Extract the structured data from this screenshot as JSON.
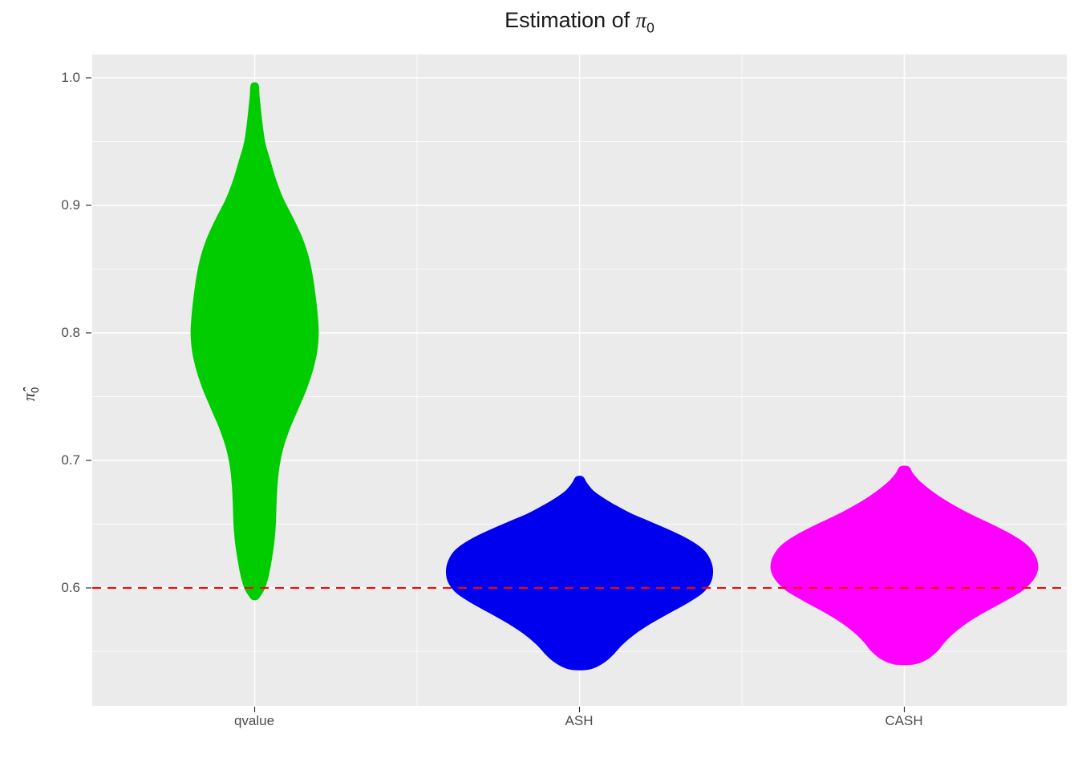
{
  "chart_data": {
    "type": "violin",
    "title": "Estimation of π₀",
    "title_parts": {
      "pre": "Estimation of ",
      "symbol": "π",
      "sub": "0"
    },
    "ylabel": "π̂₀",
    "ylabel_parts": {
      "symbol": "π̂",
      "sub": "0"
    },
    "xlabel": "",
    "categories": [
      "qvalue",
      "ASH",
      "CASH"
    ],
    "y_ticks": {
      "labels": [
        "1.0",
        "0.9",
        "0.8",
        "0.7",
        "0.6"
      ],
      "values": [
        1.0,
        0.9,
        0.8,
        0.7,
        0.6
      ]
    },
    "y_minor": [
      0.95,
      0.85,
      0.75,
      0.65,
      0.55
    ],
    "ylim": [
      0.507,
      1.017
    ],
    "grid": true,
    "legend": "none",
    "panel_bg": "#EBEBEB",
    "grid_major_color": "#FFFFFF",
    "grid_minor_color": "#FFFFFF",
    "tick_color": "#333333",
    "tick_label_color": "#4D4D4D",
    "reference_line": {
      "y": 0.6,
      "color": "#FF0000",
      "style": "dashed"
    },
    "series": [
      {
        "name": "qvalue",
        "color": "#00CC00",
        "min": 0.591,
        "max": 0.995,
        "peak_at": 0.8,
        "profile": [
          [
            0.995,
            0.02
          ],
          [
            0.985,
            0.028
          ],
          [
            0.973,
            0.038
          ],
          [
            0.96,
            0.05
          ],
          [
            0.948,
            0.065
          ],
          [
            0.935,
            0.095
          ],
          [
            0.92,
            0.13
          ],
          [
            0.905,
            0.175
          ],
          [
            0.89,
            0.235
          ],
          [
            0.875,
            0.29
          ],
          [
            0.86,
            0.33
          ],
          [
            0.845,
            0.355
          ],
          [
            0.83,
            0.372
          ],
          [
            0.815,
            0.385
          ],
          [
            0.8,
            0.392
          ],
          [
            0.785,
            0.382
          ],
          [
            0.77,
            0.355
          ],
          [
            0.755,
            0.315
          ],
          [
            0.74,
            0.265
          ],
          [
            0.725,
            0.215
          ],
          [
            0.71,
            0.175
          ],
          [
            0.695,
            0.15
          ],
          [
            0.68,
            0.138
          ],
          [
            0.665,
            0.132
          ],
          [
            0.65,
            0.128
          ],
          [
            0.635,
            0.118
          ],
          [
            0.62,
            0.1
          ],
          [
            0.61,
            0.085
          ],
          [
            0.6,
            0.062
          ],
          [
            0.594,
            0.035
          ],
          [
            0.591,
            0.015
          ]
        ]
      },
      {
        "name": "ASH",
        "color": "#0000EE",
        "min": 0.536,
        "max": 0.687,
        "peak_at": 0.612,
        "profile": [
          [
            0.687,
            0.02
          ],
          [
            0.682,
            0.045
          ],
          [
            0.676,
            0.085
          ],
          [
            0.67,
            0.15
          ],
          [
            0.664,
            0.23
          ],
          [
            0.658,
            0.32
          ],
          [
            0.652,
            0.43
          ],
          [
            0.646,
            0.54
          ],
          [
            0.64,
            0.64
          ],
          [
            0.634,
            0.72
          ],
          [
            0.628,
            0.775
          ],
          [
            0.62,
            0.81
          ],
          [
            0.612,
            0.82
          ],
          [
            0.604,
            0.805
          ],
          [
            0.596,
            0.755
          ],
          [
            0.588,
            0.66
          ],
          [
            0.58,
            0.545
          ],
          [
            0.572,
            0.435
          ],
          [
            0.564,
            0.34
          ],
          [
            0.556,
            0.265
          ],
          [
            0.549,
            0.215
          ],
          [
            0.543,
            0.165
          ],
          [
            0.538,
            0.1
          ],
          [
            0.536,
            0.045
          ]
        ]
      },
      {
        "name": "CASH",
        "color": "#FF00FF",
        "min": 0.54,
        "max": 0.695,
        "peak_at": 0.618,
        "profile": [
          [
            0.695,
            0.025
          ],
          [
            0.69,
            0.05
          ],
          [
            0.684,
            0.09
          ],
          [
            0.678,
            0.145
          ],
          [
            0.672,
            0.21
          ],
          [
            0.666,
            0.285
          ],
          [
            0.66,
            0.37
          ],
          [
            0.654,
            0.465
          ],
          [
            0.648,
            0.565
          ],
          [
            0.642,
            0.655
          ],
          [
            0.636,
            0.73
          ],
          [
            0.63,
            0.78
          ],
          [
            0.622,
            0.815
          ],
          [
            0.614,
            0.82
          ],
          [
            0.606,
            0.79
          ],
          [
            0.598,
            0.725
          ],
          [
            0.59,
            0.62
          ],
          [
            0.582,
            0.505
          ],
          [
            0.574,
            0.4
          ],
          [
            0.566,
            0.315
          ],
          [
            0.558,
            0.25
          ],
          [
            0.551,
            0.205
          ],
          [
            0.545,
            0.15
          ],
          [
            0.541,
            0.085
          ],
          [
            0.54,
            0.04
          ]
        ]
      }
    ]
  }
}
